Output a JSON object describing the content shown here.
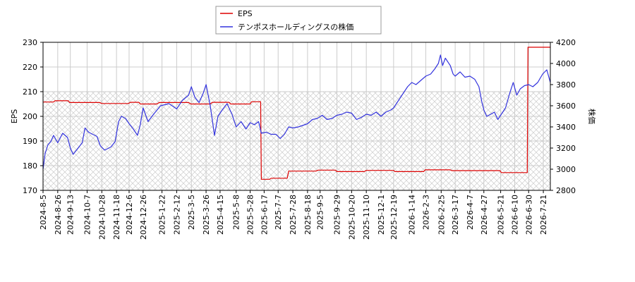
{
  "chart_data": {
    "type": "line",
    "legend": {
      "position": "top-center",
      "entries": [
        {
          "label": "EPS",
          "color": "#dd0000"
        },
        {
          "label": "テンポスホールディングスの株価",
          "color": "#3333dd"
        }
      ]
    },
    "y_left": {
      "label": "EPS",
      "lim": [
        170,
        230
      ],
      "ticks": [
        "170",
        "180",
        "190",
        "200",
        "210",
        "220",
        "230"
      ]
    },
    "y_right": {
      "label": "株価",
      "lim": [
        2800,
        4200
      ],
      "ticks": [
        "2800",
        "3000",
        "3200",
        "3400",
        "3600",
        "3800",
        "4000",
        "4200"
      ]
    },
    "x_range": [
      "2024-08-05",
      "2026-07-31"
    ],
    "x_ticks": [
      "2024-8-5",
      "2024-8-26",
      "2024-9-13",
      "2024-10-7",
      "2024-10-28",
      "2024-11-18",
      "2024-12-6",
      "2024-12-26",
      "2025-1-22",
      "2025-2-12",
      "2025-3-5",
      "2025-3-26",
      "2025-4-15",
      "2025-5-8",
      "2025-5-28",
      "2025-6-17",
      "2025-7-7",
      "2025-7-28",
      "2025-8-18",
      "2025-9-5",
      "2025-9-29",
      "2025-10-20",
      "2025-11-10",
      "2025-12-1",
      "2025-12-19",
      "2026-1-14",
      "2026-2-3",
      "2026-2-25",
      "2026-3-17",
      "2026-4-7",
      "2026-4-27",
      "2026-5-21",
      "2026-6-10",
      "2026-6-30",
      "2026-7-21"
    ],
    "grid": true,
    "shaded_band_eps": [
      170,
      210
    ],
    "series": [
      {
        "name": "EPS",
        "axis": "left",
        "color": "#dd0000",
        "points": [
          [
            "2024-08-05",
            205.8
          ],
          [
            "2024-08-20",
            205.8
          ],
          [
            "2024-08-22",
            206.3
          ],
          [
            "2024-09-10",
            206.3
          ],
          [
            "2024-09-12",
            205.6
          ],
          [
            "2024-10-25",
            205.6
          ],
          [
            "2024-10-28",
            205.2
          ],
          [
            "2024-12-05",
            205.2
          ],
          [
            "2024-12-08",
            205.7
          ],
          [
            "2024-12-20",
            205.7
          ],
          [
            "2024-12-22",
            205.0
          ],
          [
            "2025-01-15",
            205.0
          ],
          [
            "2025-01-18",
            205.6
          ],
          [
            "2025-03-01",
            205.6
          ],
          [
            "2025-03-04",
            205.0
          ],
          [
            "2025-04-01",
            205.0
          ],
          [
            "2025-04-04",
            205.7
          ],
          [
            "2025-04-28",
            205.7
          ],
          [
            "2025-04-30",
            205.0
          ],
          [
            "2025-05-28",
            205.0
          ],
          [
            "2025-05-30",
            205.9
          ],
          [
            "2025-06-12",
            205.9
          ],
          [
            "2025-06-13",
            174.5
          ],
          [
            "2025-06-25",
            174.5
          ],
          [
            "2025-06-27",
            174.9
          ],
          [
            "2025-07-20",
            174.9
          ],
          [
            "2025-07-22",
            177.8
          ],
          [
            "2025-08-30",
            177.8
          ],
          [
            "2025-09-02",
            178.2
          ],
          [
            "2025-09-27",
            178.2
          ],
          [
            "2025-09-29",
            177.6
          ],
          [
            "2025-11-07",
            177.6
          ],
          [
            "2025-11-10",
            178.1
          ],
          [
            "2025-12-19",
            178.1
          ],
          [
            "2025-12-21",
            177.6
          ],
          [
            "2026-01-31",
            177.6
          ],
          [
            "2026-02-02",
            178.3
          ],
          [
            "2026-03-10",
            178.3
          ],
          [
            "2026-03-12",
            178.0
          ],
          [
            "2026-05-20",
            178.0
          ],
          [
            "2026-05-22",
            177.2
          ],
          [
            "2026-06-28",
            177.2
          ],
          [
            "2026-06-29",
            228.0
          ],
          [
            "2026-07-31",
            228.0
          ]
        ]
      },
      {
        "name": "テンポスホールディングスの株価",
        "axis": "right",
        "color": "#3333dd",
        "points": [
          [
            "2024-08-05",
            3000
          ],
          [
            "2024-08-08",
            3150
          ],
          [
            "2024-08-12",
            3230
          ],
          [
            "2024-08-16",
            3260
          ],
          [
            "2024-08-20",
            3320
          ],
          [
            "2024-08-26",
            3250
          ],
          [
            "2024-09-02",
            3340
          ],
          [
            "2024-09-09",
            3300
          ],
          [
            "2024-09-13",
            3200
          ],
          [
            "2024-09-17",
            3140
          ],
          [
            "2024-09-23",
            3190
          ],
          [
            "2024-09-30",
            3250
          ],
          [
            "2024-10-04",
            3390
          ],
          [
            "2024-10-09",
            3350
          ],
          [
            "2024-10-15",
            3330
          ],
          [
            "2024-10-21",
            3310
          ],
          [
            "2024-10-26",
            3220
          ],
          [
            "2024-11-01",
            3180
          ],
          [
            "2024-11-10",
            3210
          ],
          [
            "2024-11-16",
            3260
          ],
          [
            "2024-11-21",
            3450
          ],
          [
            "2024-11-25",
            3500
          ],
          [
            "2024-12-01",
            3480
          ],
          [
            "2024-12-06",
            3430
          ],
          [
            "2024-12-12",
            3380
          ],
          [
            "2024-12-18",
            3320
          ],
          [
            "2024-12-22",
            3420
          ],
          [
            "2024-12-26",
            3580
          ],
          [
            "2025-01-02",
            3450
          ],
          [
            "2025-01-10",
            3520
          ],
          [
            "2025-01-20",
            3600
          ],
          [
            "2025-02-01",
            3620
          ],
          [
            "2025-02-12",
            3570
          ],
          [
            "2025-02-20",
            3650
          ],
          [
            "2025-03-01",
            3700
          ],
          [
            "2025-03-05",
            3780
          ],
          [
            "2025-03-10",
            3680
          ],
          [
            "2025-03-16",
            3630
          ],
          [
            "2025-03-22",
            3720
          ],
          [
            "2025-03-26",
            3800
          ],
          [
            "2025-04-01",
            3600
          ],
          [
            "2025-04-07",
            3320
          ],
          [
            "2025-04-12",
            3500
          ],
          [
            "2025-04-18",
            3560
          ],
          [
            "2025-04-25",
            3620
          ],
          [
            "2025-05-02",
            3520
          ],
          [
            "2025-05-08",
            3400
          ],
          [
            "2025-05-15",
            3450
          ],
          [
            "2025-05-22",
            3380
          ],
          [
            "2025-05-28",
            3440
          ],
          [
            "2025-06-03",
            3420
          ],
          [
            "2025-06-09",
            3450
          ],
          [
            "2025-06-13",
            3340
          ],
          [
            "2025-06-20",
            3350
          ],
          [
            "2025-06-27",
            3330
          ],
          [
            "2025-07-04",
            3330
          ],
          [
            "2025-07-10",
            3290
          ],
          [
            "2025-07-16",
            3330
          ],
          [
            "2025-07-22",
            3400
          ],
          [
            "2025-07-28",
            3390
          ],
          [
            "2025-08-05",
            3400
          ],
          [
            "2025-08-18",
            3430
          ],
          [
            "2025-08-25",
            3470
          ],
          [
            "2025-09-01",
            3480
          ],
          [
            "2025-09-08",
            3510
          ],
          [
            "2025-09-15",
            3470
          ],
          [
            "2025-09-22",
            3480
          ],
          [
            "2025-09-29",
            3510
          ],
          [
            "2025-10-06",
            3520
          ],
          [
            "2025-10-13",
            3540
          ],
          [
            "2025-10-20",
            3530
          ],
          [
            "2025-10-27",
            3470
          ],
          [
            "2025-11-03",
            3490
          ],
          [
            "2025-11-10",
            3520
          ],
          [
            "2025-11-17",
            3510
          ],
          [
            "2025-11-24",
            3540
          ],
          [
            "2025-12-01",
            3500
          ],
          [
            "2025-12-08",
            3540
          ],
          [
            "2025-12-15",
            3560
          ],
          [
            "2025-12-19",
            3580
          ],
          [
            "2025-12-26",
            3650
          ],
          [
            "2026-01-02",
            3720
          ],
          [
            "2026-01-08",
            3780
          ],
          [
            "2026-01-14",
            3820
          ],
          [
            "2026-01-20",
            3800
          ],
          [
            "2026-01-27",
            3840
          ],
          [
            "2026-02-03",
            3880
          ],
          [
            "2026-02-10",
            3900
          ],
          [
            "2026-02-16",
            3950
          ],
          [
            "2026-02-21",
            4000
          ],
          [
            "2026-02-24",
            4080
          ],
          [
            "2026-02-27",
            3980
          ],
          [
            "2026-03-03",
            4050
          ],
          [
            "2026-03-10",
            3980
          ],
          [
            "2026-03-14",
            3900
          ],
          [
            "2026-03-17",
            3880
          ],
          [
            "2026-03-24",
            3920
          ],
          [
            "2026-03-31",
            3870
          ],
          [
            "2026-04-07",
            3880
          ],
          [
            "2026-04-14",
            3850
          ],
          [
            "2026-04-20",
            3780
          ],
          [
            "2026-04-24",
            3640
          ],
          [
            "2026-04-27",
            3560
          ],
          [
            "2026-05-01",
            3500
          ],
          [
            "2026-05-07",
            3520
          ],
          [
            "2026-05-12",
            3540
          ],
          [
            "2026-05-17",
            3470
          ],
          [
            "2026-05-21",
            3510
          ],
          [
            "2026-05-28",
            3580
          ],
          [
            "2026-06-03",
            3720
          ],
          [
            "2026-06-08",
            3820
          ],
          [
            "2026-06-13",
            3700
          ],
          [
            "2026-06-18",
            3760
          ],
          [
            "2026-06-24",
            3790
          ],
          [
            "2026-06-30",
            3800
          ],
          [
            "2026-07-06",
            3780
          ],
          [
            "2026-07-13",
            3820
          ],
          [
            "2026-07-20",
            3900
          ],
          [
            "2026-07-26",
            3940
          ],
          [
            "2026-07-31",
            3820
          ]
        ]
      }
    ]
  }
}
